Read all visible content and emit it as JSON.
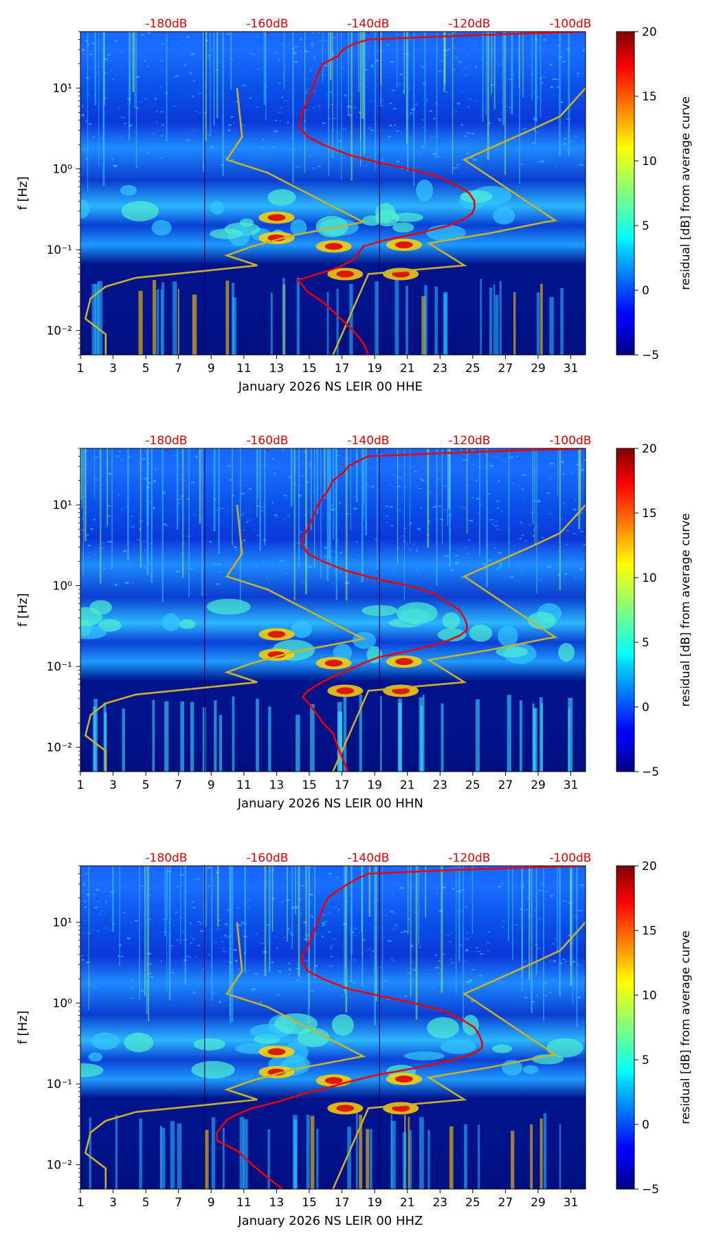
{
  "figure": {
    "colorbar_label": "residual [dB] from average curve",
    "colorbar_ticks": [
      "−5",
      "0",
      "5",
      "10",
      "15",
      "20"
    ],
    "y_label": "f [Hz]",
    "y_ticks": [
      "10⁻²",
      "10⁻¹",
      "10⁰",
      "10¹"
    ],
    "x_ticks": [
      "1",
      "3",
      "5",
      "7",
      "9",
      "11",
      "13",
      "15",
      "17",
      "19",
      "21",
      "23",
      "25",
      "27",
      "29",
      "31"
    ],
    "db_ticks": [
      "-180dB",
      "-160dB",
      "-140dB",
      "-120dB",
      "-100dB"
    ],
    "colors": {
      "psd_curve": "#ee0000",
      "noise_model": "#c8b22a",
      "db_label": "#e00000"
    }
  },
  "chart_data": [
    {
      "type": "heatmap",
      "title": "",
      "xlabel": "January 2026 NS LEIR 00 HHE",
      "ylabel": "f [Hz]",
      "x_range_days": [
        1,
        31.9
      ],
      "y_range_hz": [
        0.005,
        50
      ],
      "y_scale": "log",
      "colorbar": {
        "label": "residual [dB] from average curve",
        "range": [
          -5,
          20
        ]
      },
      "db_axis": {
        "position": "top",
        "range_db": [
          -197,
          -97
        ],
        "ticks": [
          -180,
          -160,
          -140,
          -120,
          -100
        ]
      },
      "psd_curve": {
        "freq_hz": [
          50,
          45,
          40,
          35,
          30,
          25,
          20,
          15,
          10,
          7,
          5,
          4,
          3.2,
          2.5,
          2,
          1.5,
          1.2,
          1.0,
          0.8,
          0.6,
          0.5,
          0.4,
          0.33,
          0.28,
          0.24,
          0.2,
          0.16,
          0.13,
          0.11,
          0.09,
          0.075,
          0.06,
          0.05,
          0.042,
          0.036,
          0.03,
          0.025,
          0.02,
          0.015,
          0.01,
          0.007,
          0.005
        ],
        "db": [
          -97,
          -120,
          -140,
          -143,
          -145,
          -146,
          -149,
          -150,
          -151,
          -152,
          -153,
          -153.5,
          -153.5,
          -152,
          -149,
          -144,
          -138,
          -132,
          -126,
          -122,
          -120,
          -119,
          -119,
          -119.5,
          -121,
          -124,
          -130,
          -137,
          -141,
          -142,
          -143,
          -146,
          -150,
          -154,
          -153,
          -152,
          -150,
          -148,
          -146,
          -143,
          -141,
          -140
        ]
      },
      "noise_models": [
        {
          "name": "low",
          "freq_hz": [
            10,
            2.5,
            1.3,
            0.9,
            0.22,
            0.15,
            0.11,
            0.085,
            0.064,
            0.055,
            0.045,
            0.035,
            0.025,
            0.014,
            0.009,
            0.005
          ],
          "db": [
            -166,
            -165,
            -168,
            -160,
            -141,
            -155,
            -163,
            -168,
            -162,
            -172,
            -186,
            -192,
            -195,
            -196,
            -192,
            -192
          ]
        },
        {
          "name": "high",
          "freq_hz": [
            10,
            4.5,
            3.0,
            1.3,
            0.23,
            0.22,
            0.16,
            0.12,
            0.064,
            0.05,
            0.005
          ],
          "db": [
            -97,
            -102,
            -108,
            -121,
            -103,
            -105,
            -116,
            -128,
            -121,
            -140,
            -147
          ]
        }
      ]
    },
    {
      "type": "heatmap",
      "title": "",
      "xlabel": "January 2026 NS LEIR 00 HHN",
      "ylabel": "f [Hz]",
      "x_range_days": [
        1,
        31.9
      ],
      "y_range_hz": [
        0.005,
        50
      ],
      "y_scale": "log",
      "colorbar": {
        "label": "residual [dB] from average curve",
        "range": [
          -5,
          20
        ]
      },
      "db_axis": {
        "position": "top",
        "range_db": [
          -197,
          -97
        ],
        "ticks": [
          -180,
          -160,
          -140,
          -120,
          -100
        ]
      },
      "psd_curve": {
        "freq_hz": [
          50,
          45,
          40,
          35,
          30,
          25,
          20,
          15,
          10,
          7,
          5,
          4,
          3.2,
          2.5,
          2,
          1.5,
          1.2,
          1.0,
          0.8,
          0.6,
          0.5,
          0.4,
          0.33,
          0.28,
          0.24,
          0.2,
          0.16,
          0.13,
          0.11,
          0.09,
          0.075,
          0.06,
          0.05,
          0.042,
          0.036,
          0.03,
          0.025,
          0.02,
          0.015,
          0.01,
          0.007,
          0.005
        ],
        "db": [
          -97,
          -120,
          -140,
          -142,
          -144,
          -145,
          -147,
          -148,
          -150,
          -151,
          -152,
          -153,
          -153,
          -152,
          -149,
          -144,
          -138,
          -132,
          -127,
          -124,
          -122,
          -121,
          -120.5,
          -120.5,
          -122,
          -125,
          -131,
          -138,
          -141,
          -144,
          -147,
          -150,
          -152,
          -153,
          -152,
          -151,
          -150,
          -149,
          -147,
          -146,
          -145,
          -144
        ]
      },
      "noise_models": [
        {
          "name": "low",
          "freq_hz": [
            10,
            2.5,
            1.3,
            0.9,
            0.22,
            0.15,
            0.11,
            0.085,
            0.064,
            0.055,
            0.045,
            0.035,
            0.025,
            0.014,
            0.009,
            0.005
          ],
          "db": [
            -166,
            -165,
            -168,
            -160,
            -141,
            -155,
            -163,
            -168,
            -162,
            -172,
            -186,
            -192,
            -195,
            -196,
            -192,
            -192
          ]
        },
        {
          "name": "high",
          "freq_hz": [
            10,
            4.5,
            3.0,
            1.3,
            0.23,
            0.22,
            0.16,
            0.12,
            0.064,
            0.05,
            0.005
          ],
          "db": [
            -97,
            -102,
            -108,
            -121,
            -103,
            -105,
            -116,
            -128,
            -121,
            -140,
            -147
          ]
        }
      ]
    },
    {
      "type": "heatmap",
      "title": "",
      "xlabel": "January 2026 NS LEIR 00 HHZ",
      "ylabel": "f [Hz]",
      "x_range_days": [
        1,
        31.9
      ],
      "y_range_hz": [
        0.005,
        50
      ],
      "y_scale": "log",
      "colorbar": {
        "label": "residual [dB] from average curve",
        "range": [
          -5,
          20
        ]
      },
      "db_axis": {
        "position": "top",
        "range_db": [
          -197,
          -97
        ],
        "ticks": [
          -180,
          -160,
          -140,
          -120,
          -100
        ]
      },
      "psd_curve": {
        "freq_hz": [
          50,
          45,
          40,
          35,
          30,
          25,
          20,
          15,
          10,
          7,
          5,
          4,
          3.2,
          2.5,
          2,
          1.5,
          1.2,
          1.0,
          0.8,
          0.6,
          0.5,
          0.4,
          0.33,
          0.28,
          0.24,
          0.2,
          0.16,
          0.13,
          0.11,
          0.09,
          0.075,
          0.06,
          0.05,
          0.042,
          0.036,
          0.03,
          0.025,
          0.02,
          0.015,
          0.01,
          0.007,
          0.005
        ],
        "db": [
          -97,
          -121,
          -140,
          -142,
          -144,
          -146,
          -148,
          -149,
          -150,
          -151,
          -152,
          -153,
          -153,
          -152,
          -149,
          -144,
          -137,
          -131,
          -125,
          -121,
          -119,
          -118,
          -117.5,
          -117.5,
          -119,
          -123,
          -130,
          -138,
          -143,
          -148,
          -153,
          -158,
          -163,
          -166,
          -168,
          -169,
          -170,
          -170,
          -166,
          -163,
          -160,
          -157
        ]
      },
      "noise_models": [
        {
          "name": "low",
          "freq_hz": [
            10,
            2.5,
            1.3,
            0.9,
            0.22,
            0.15,
            0.11,
            0.085,
            0.064,
            0.055,
            0.045,
            0.035,
            0.025,
            0.014,
            0.009,
            0.005
          ],
          "db": [
            -166,
            -165,
            -168,
            -160,
            -141,
            -155,
            -163,
            -168,
            -162,
            -172,
            -186,
            -192,
            -195,
            -196,
            -192,
            -192
          ]
        },
        {
          "name": "high",
          "freq_hz": [
            10,
            4.5,
            3.0,
            1.3,
            0.23,
            0.22,
            0.16,
            0.12,
            0.064,
            0.05,
            0.005
          ],
          "db": [
            -97,
            -102,
            -108,
            -121,
            -103,
            -105,
            -116,
            -128,
            -121,
            -140,
            -147
          ]
        }
      ]
    }
  ]
}
